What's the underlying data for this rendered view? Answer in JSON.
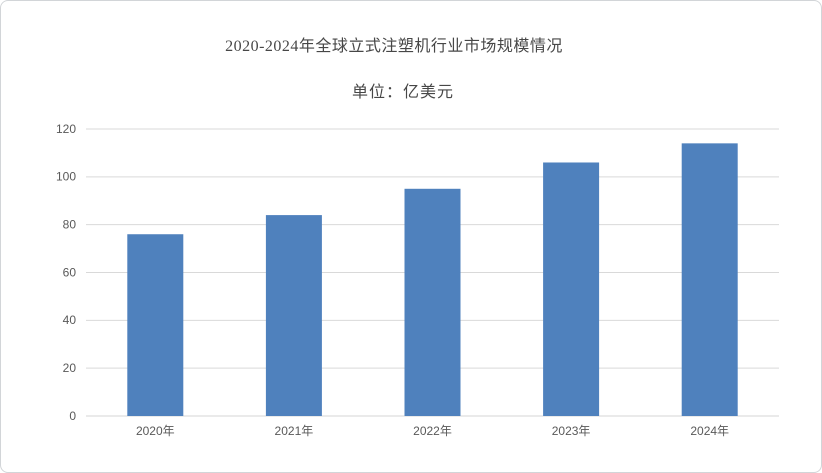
{
  "chart_data": {
    "type": "bar",
    "title": "2020-2024年全球立式注塑机行业市场规模情况",
    "subtitle": "单位：亿美元",
    "categories": [
      "2020年",
      "2021年",
      "2022年",
      "2023年",
      "2024年"
    ],
    "values": [
      76,
      84,
      95,
      106,
      114
    ],
    "xlabel": "",
    "ylabel": "",
    "ylim": [
      0,
      120
    ],
    "ytick_step": 20,
    "grid": true,
    "legend": false,
    "colors": {
      "bar": "#4f81bd",
      "gridline": "#d9d9d9",
      "axis_line": "#d6d6d6",
      "tick_label": "#595959",
      "title": "#474747"
    }
  }
}
